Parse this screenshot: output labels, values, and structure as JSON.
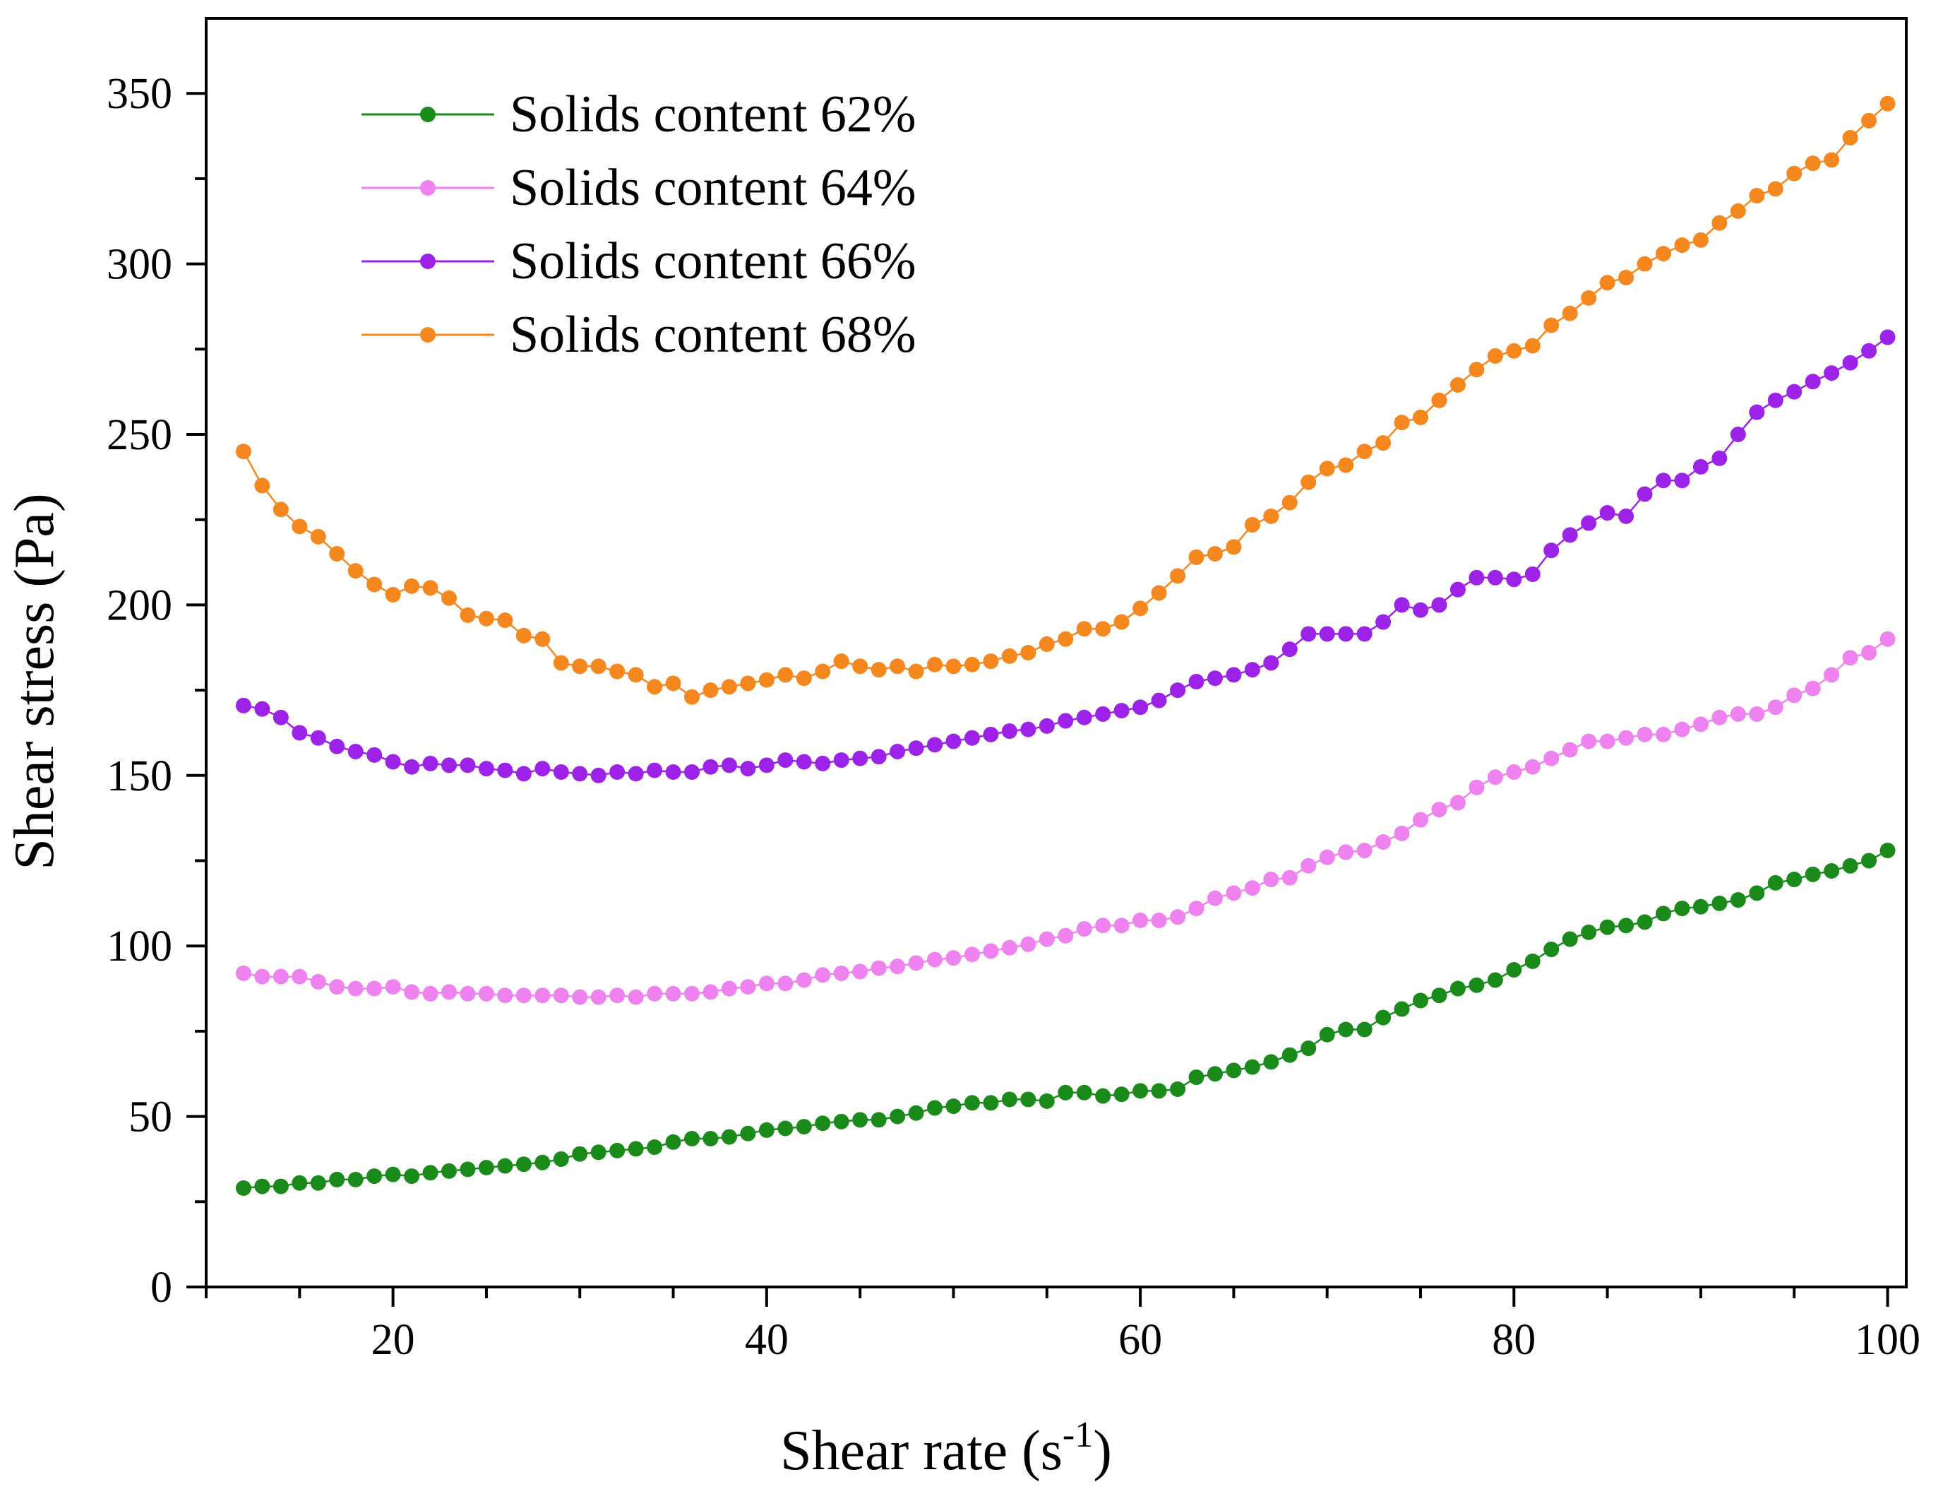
{
  "chart_data": {
    "type": "line",
    "title": "",
    "xlabel": "Shear rate (s",
    "xlabel_superscript": "-1",
    "xlabel_suffix": ")",
    "ylabel": "Shear stress (Pa)",
    "xlim": [
      10,
      101
    ],
    "ylim": [
      0,
      372
    ],
    "xticks": [
      20,
      40,
      60,
      80,
      100
    ],
    "xtick_labels": [
      "20",
      "40",
      "60",
      "80",
      "100"
    ],
    "yticks": [
      0,
      50,
      100,
      150,
      200,
      250,
      300,
      350
    ],
    "ytick_labels": [
      "0",
      "50",
      "100",
      "150",
      "200",
      "250",
      "300",
      "350"
    ],
    "grid": false,
    "legend_position": "top-left",
    "x": [
      12,
      13,
      14,
      15,
      16,
      17,
      18,
      19,
      20,
      21,
      22,
      23,
      24,
      25,
      26,
      27,
      28,
      29,
      30,
      31,
      32,
      33,
      34,
      35,
      36,
      37,
      38,
      39,
      40,
      41,
      42,
      43,
      44,
      45,
      46,
      47,
      48,
      49,
      50,
      51,
      52,
      53,
      54,
      55,
      56,
      57,
      58,
      59,
      60,
      61,
      62,
      63,
      64,
      65,
      66,
      67,
      68,
      69,
      70,
      71,
      72,
      73,
      74,
      75,
      76,
      77,
      78,
      79,
      80,
      81,
      82,
      83,
      84,
      85,
      86,
      87,
      88,
      89,
      90,
      91,
      92,
      93,
      94,
      95,
      96,
      97,
      98,
      99,
      100
    ],
    "series": [
      {
        "name": "Solids content 62%",
        "color": "#1a8a1a",
        "values": [
          29,
          29.5,
          29.5,
          30.5,
          30.5,
          31.5,
          31.5,
          32.5,
          33,
          32.5,
          33.5,
          34,
          34.5,
          35,
          35.5,
          36,
          36.5,
          37.5,
          39,
          39.5,
          40,
          40.5,
          41,
          42.5,
          43.5,
          43.5,
          44,
          45,
          46,
          46.5,
          47,
          48,
          48.5,
          49,
          49,
          50,
          51,
          52.5,
          53,
          54,
          54,
          55,
          55,
          54.5,
          57,
          57,
          56,
          56.5,
          57.5,
          57.5,
          58,
          61.5,
          62.5,
          63.5,
          64.5,
          66,
          68,
          70,
          74,
          75.5,
          75.5,
          79,
          81.5,
          84,
          85.5,
          87.5,
          88.5,
          90,
          93,
          95.5,
          99,
          102,
          104,
          105.5,
          106,
          107,
          109.5,
          111,
          111.5,
          112.5,
          113.5,
          115.5,
          118.5,
          119.5,
          121,
          122,
          123.5,
          125,
          128
        ]
      },
      {
        "name": "Solids content 64%",
        "color": "#ee82ee",
        "values": [
          92,
          91,
          91,
          91,
          89.5,
          88,
          87.5,
          87.5,
          88,
          86.5,
          86,
          86.5,
          86,
          86,
          85.5,
          85.5,
          85.5,
          85.5,
          85,
          85,
          85.5,
          85,
          86,
          86,
          86,
          86.5,
          87.5,
          88,
          89,
          89,
          90,
          91.5,
          92,
          92.5,
          93.5,
          94,
          95,
          96,
          96.5,
          97.5,
          98.5,
          99.5,
          100.5,
          102,
          103,
          105,
          106,
          106,
          107.5,
          107.5,
          108.5,
          111,
          114,
          115.5,
          117,
          119.5,
          120,
          123.5,
          126,
          127.5,
          128,
          130.5,
          133,
          137,
          140,
          142,
          146.5,
          149.5,
          151,
          152.5,
          155,
          157.5,
          160,
          160,
          161,
          162,
          162,
          163.5,
          165,
          167,
          168,
          168,
          170,
          173.5,
          175.5,
          179.5,
          184.5,
          186,
          190
        ]
      },
      {
        "name": "Solids content 66%",
        "color": "#9b22e6",
        "values": [
          170.5,
          169.5,
          167,
          162.5,
          161,
          158.5,
          157,
          156,
          154,
          152.5,
          153.5,
          153,
          153,
          152,
          151.5,
          150.5,
          152,
          151,
          150.5,
          150,
          151,
          150.5,
          151.5,
          151,
          151,
          152.5,
          153,
          152,
          153,
          154.5,
          154,
          153.5,
          154.5,
          155,
          155.5,
          157,
          158,
          159,
          160,
          161,
          162,
          163,
          163.5,
          164.5,
          166,
          167,
          168,
          169,
          170,
          172,
          175,
          177.5,
          178.5,
          179.5,
          181,
          183,
          187,
          191.5,
          191.5,
          191.5,
          191.5,
          195,
          200,
          198.5,
          200,
          204.5,
          208,
          208,
          207.5,
          209,
          216,
          220.5,
          224,
          227,
          226,
          232.5,
          236.5,
          236.5,
          240.5,
          243,
          250,
          256.5,
          260,
          262.5,
          265.5,
          268,
          271,
          274.5,
          278.5
        ]
      },
      {
        "name": "Solids content 68%",
        "color": "#f5871f",
        "values": [
          245,
          235,
          228,
          223,
          220,
          215,
          210,
          206,
          203,
          205.5,
          205,
          202,
          197,
          196,
          195.5,
          191,
          190,
          183,
          182,
          182,
          180.5,
          179.5,
          176,
          177,
          173,
          175,
          176,
          177,
          178,
          179.5,
          178.5,
          180.5,
          183.5,
          182,
          181,
          182,
          180.5,
          182.5,
          182,
          182.5,
          183.5,
          185,
          186,
          188.5,
          190,
          193,
          193,
          195,
          199,
          203.5,
          208.5,
          214,
          215,
          217,
          223.5,
          226,
          230,
          236,
          240,
          241,
          245,
          247.5,
          253.5,
          255,
          260,
          264.5,
          269,
          273,
          274.5,
          276,
          282,
          285.5,
          290,
          294.5,
          296,
          300,
          303,
          305.5,
          307,
          312,
          315.5,
          320,
          322,
          326.5,
          329.5,
          330.5,
          337,
          342,
          347
        ]
      }
    ]
  }
}
